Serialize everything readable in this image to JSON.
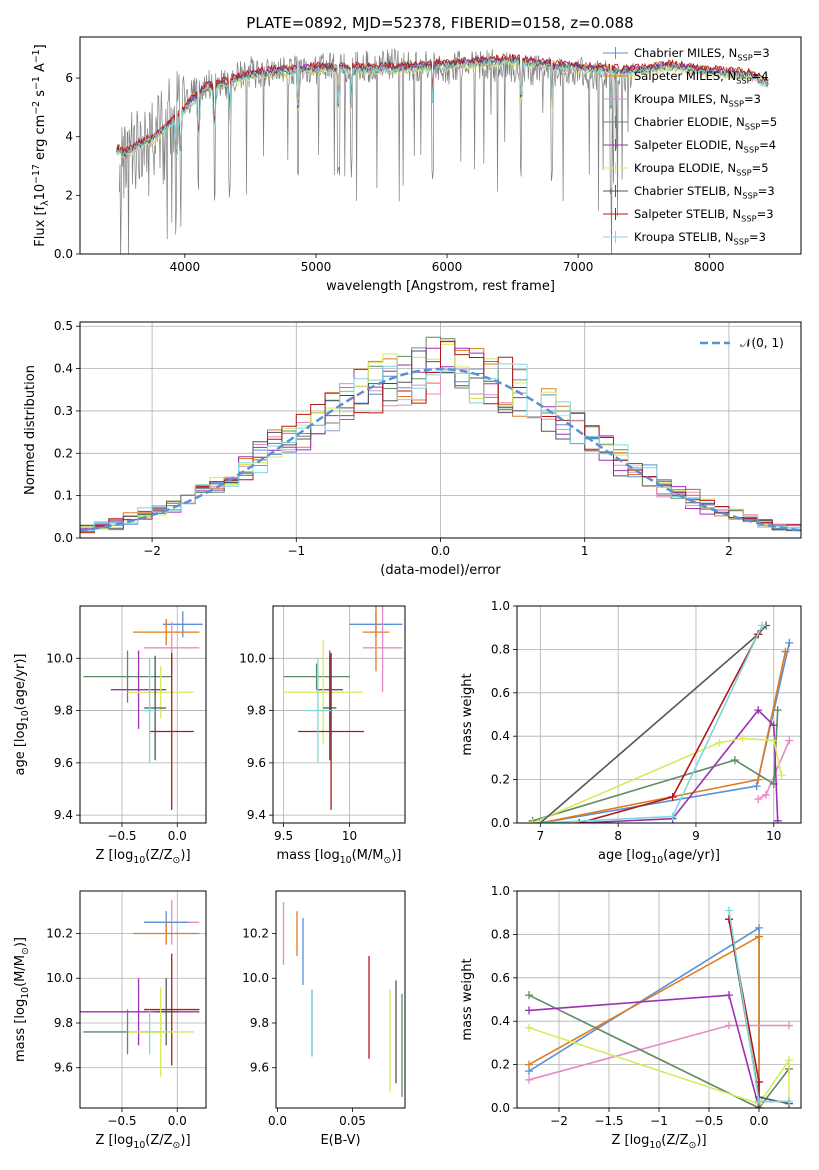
{
  "figure": {
    "title": "PLATE=0892, MJD=52378, FIBERID=0158, z=0.088"
  },
  "colors": {
    "Chabrier MILES": "#5b8fd6",
    "Salpeter MILES": "#e07b1f",
    "Kroupa MILES": "#e88bc4",
    "Chabrier ELODIE": "#5f8a63",
    "Salpeter ELODIE": "#9b30b6",
    "Kroupa ELODIE": "#d4ec5c",
    "Chabrier STELIB": "#555555",
    "Salpeter STELIB": "#b01818",
    "Kroupa STELIB": "#7fd8dc",
    "data_spectrum": "#7f7f7f",
    "gaussian": "#5b8fd6"
  },
  "chart_data": [
    {
      "id": "spectrum",
      "type": "line",
      "xlabel": "wavelength [Angstrom, rest frame]",
      "ylabel": "Flux [f$_\\lambda$10$^{-17}$ erg cm$^{-2}$ s$^{-1}$ A$^{-1}$]",
      "xlim": [
        3200,
        8700
      ],
      "ylim": [
        0,
        7.4
      ],
      "xticks": [
        4000,
        5000,
        6000,
        7000,
        8000
      ],
      "yticks": [
        0,
        2,
        4,
        6
      ],
      "legend_position": "top-right",
      "legend": [
        "Chabrier MILES, N_SSP=3",
        "Salpeter MILES, N_SSP=4",
        "Kroupa MILES, N_SSP=3",
        "Chabrier ELODIE, N_SSP=5",
        "Salpeter ELODIE, N_SSP=4",
        "Kroupa ELODIE, N_SSP=5",
        "Chabrier STELIB, N_SSP=3",
        "Salpeter STELIB, N_SSP=3",
        "Kroupa STELIB, N_SSP=3"
      ],
      "data_continuum": {
        "x": [
          3500,
          3600,
          3700,
          3800,
          3900,
          4000,
          4100,
          4200,
          4300,
          4400,
          4500,
          4600,
          4800,
          5000,
          5200,
          5400,
          5600,
          5800,
          6000,
          6200,
          6400,
          6600,
          6800,
          7000,
          7200,
          7400
        ],
        "y": [
          2.8,
          3.5,
          3.8,
          4.2,
          4.7,
          5.2,
          5.6,
          5.8,
          5.7,
          6.0,
          6.2,
          6.1,
          6.2,
          6.3,
          6.4,
          6.4,
          6.5,
          6.4,
          6.3,
          6.5,
          6.4,
          6.3,
          6.2,
          6.2,
          6.1,
          6.0
        ]
      },
      "model_continuum": {
        "x": [
          3500,
          3550,
          3650,
          3750,
          3850,
          3950,
          4050,
          4150,
          4300,
          4500,
          4700,
          5000,
          5300,
          5600,
          5900,
          6200,
          6500,
          6800,
          7100,
          7400,
          7700,
          8000,
          8300,
          8450
        ],
        "y": [
          3.5,
          3.4,
          3.7,
          3.9,
          4.3,
          4.7,
          5.2,
          5.6,
          5.8,
          6.1,
          6.2,
          6.3,
          6.3,
          6.3,
          6.4,
          6.5,
          6.6,
          6.4,
          6.3,
          6.2,
          6.4,
          6.2,
          6.1,
          5.8
        ]
      }
    },
    {
      "id": "residuals",
      "type": "line",
      "xlabel": "(data-model)/error",
      "ylabel": "Normed distribution",
      "xlim": [
        -2.5,
        2.5
      ],
      "ylim": [
        0,
        0.51
      ],
      "xticks": [
        -2,
        -1,
        0,
        1,
        2
      ],
      "yticks": [
        0.0,
        0.1,
        0.2,
        0.3,
        0.4,
        0.5
      ],
      "legend_position": "top-right",
      "legend": [
        "$\\mathcal{N}(0, 1)$"
      ],
      "grid": true
    },
    {
      "id": "age-vs-Z",
      "type": "scatter",
      "xlabel": "Z [log$_{10}$(Z/Z$_\\odot$)]",
      "ylabel": "age  [log$_{10}$(age/yr)]",
      "xlim": [
        -0.88,
        0.26
      ],
      "ylim": [
        9.37,
        10.2
      ],
      "xticks": [
        -0.5,
        0.0
      ],
      "yticks": [
        9.4,
        9.6,
        9.8,
        10.0
      ],
      "grid": true,
      "points": [
        {
          "model": "Chabrier MILES",
          "x": 0.05,
          "xerr": 0.18,
          "y": 10.13,
          "yerr": 0.05
        },
        {
          "model": "Salpeter MILES",
          "x": -0.1,
          "xerr": 0.3,
          "y": 10.1,
          "yerr": 0.05
        },
        {
          "model": "Kroupa MILES",
          "x": -0.05,
          "xerr": 0.25,
          "y": 10.04,
          "yerr": 0.1
        },
        {
          "model": "Chabrier ELODIE",
          "x": -0.45,
          "xerr": 0.4,
          "y": 9.93,
          "yerr": 0.1
        },
        {
          "model": "Salpeter ELODIE",
          "x": -0.35,
          "xerr": 0.25,
          "y": 9.88,
          "yerr": 0.15
        },
        {
          "model": "Kroupa ELODIE",
          "x": -0.15,
          "xerr": 0.3,
          "y": 9.87,
          "yerr": 0.1
        },
        {
          "model": "Chabrier STELIB",
          "x": -0.2,
          "xerr": 0.1,
          "y": 9.81,
          "yerr": 0.2
        },
        {
          "model": "Salpeter STELIB",
          "x": -0.05,
          "xerr": 0.2,
          "y": 9.72,
          "yerr": 0.3
        },
        {
          "model": "Kroupa STELIB",
          "x": -0.25,
          "xerr": 0.05,
          "y": 9.8,
          "yerr": 0.2
        }
      ]
    },
    {
      "id": "age-vs-mass",
      "type": "scatter",
      "xlabel": "mass [log$_{10}$(M/M$_\\odot$)]",
      "ylabel": "",
      "xlim": [
        9.42,
        10.42
      ],
      "ylim": [
        9.37,
        10.2
      ],
      "xticks": [
        9.5,
        10.0
      ],
      "yticks": [
        9.4,
        9.6,
        9.8,
        10.0
      ],
      "grid": true,
      "points": [
        {
          "model": "Chabrier MILES",
          "x": 10.2,
          "xerr": 0.2,
          "y": 10.13,
          "yerr": 0.05
        },
        {
          "model": "Salpeter MILES",
          "x": 10.2,
          "xerr": 0.1,
          "y": 10.1,
          "yerr": 0.15
        },
        {
          "model": "Kroupa MILES",
          "x": 10.25,
          "xerr": 0.15,
          "y": 10.04,
          "yerr": 0.17
        },
        {
          "model": "Chabrier ELODIE",
          "x": 9.75,
          "xerr": 0.25,
          "y": 9.93,
          "yerr": 0.05
        },
        {
          "model": "Salpeter ELODIE",
          "x": 9.85,
          "xerr": 0.1,
          "y": 9.88,
          "yerr": 0.15
        },
        {
          "model": "Kroupa ELODIE",
          "x": 9.8,
          "xerr": 0.3,
          "y": 9.87,
          "yerr": 0.2
        },
        {
          "model": "Chabrier STELIB",
          "x": 9.85,
          "xerr": 0.05,
          "y": 9.81,
          "yerr": 0.2
        },
        {
          "model": "Salpeter STELIB",
          "x": 9.86,
          "xerr": 0.25,
          "y": 9.72,
          "yerr": 0.3
        },
        {
          "model": "Kroupa STELIB",
          "x": 9.76,
          "xerr": 0.1,
          "y": 9.8,
          "yerr": 0.2
        }
      ]
    },
    {
      "id": "mass-weight-vs-age",
      "type": "line",
      "xlabel": "age  [log$_{10}$(age/yr)]",
      "ylabel": "mass weight",
      "xlim": [
        6.7,
        10.35
      ],
      "ylim": [
        0,
        1.0
      ],
      "xticks": [
        7,
        8,
        9,
        10
      ],
      "yticks": [
        0.0,
        0.2,
        0.4,
        0.6,
        0.8,
        1.0
      ],
      "grid": true,
      "series": [
        {
          "model": "Chabrier MILES",
          "x": [
            7.0,
            9.78,
            10.2
          ],
          "y": [
            0.0,
            0.17,
            0.83
          ]
        },
        {
          "model": "Salpeter MILES",
          "x": [
            7.0,
            9.8,
            10.15
          ],
          "y": [
            0.0,
            0.2,
            0.79
          ]
        },
        {
          "model": "Kroupa MILES",
          "x": [
            9.8,
            9.9,
            10.2
          ],
          "y": [
            0.11,
            0.13,
            0.38
          ]
        },
        {
          "model": "Chabrier ELODIE",
          "x": [
            6.9,
            9.5,
            10.0,
            10.05
          ],
          "y": [
            0.01,
            0.29,
            0.18,
            0.52
          ]
        },
        {
          "model": "Salpeter ELODIE",
          "x": [
            7.5,
            8.7,
            9.8,
            10.0,
            10.05
          ],
          "y": [
            0.0,
            0.02,
            0.52,
            0.45,
            0.01
          ]
        },
        {
          "model": "Kroupa ELODIE",
          "x": [
            6.9,
            9.3,
            9.6,
            10.0,
            10.1
          ],
          "y": [
            0.0,
            0.37,
            0.39,
            0.38,
            0.22
          ]
        },
        {
          "model": "Chabrier STELIB",
          "x": [
            7.0,
            9.8,
            9.9
          ],
          "y": [
            0.0,
            0.87,
            0.91
          ]
        },
        {
          "model": "Salpeter STELIB",
          "x": [
            7.5,
            8.7,
            9.8
          ],
          "y": [
            0.0,
            0.12,
            0.87
          ]
        },
        {
          "model": "Kroupa STELIB",
          "x": [
            7.0,
            8.7,
            9.85
          ],
          "y": [
            0.0,
            0.03,
            0.91
          ]
        }
      ]
    },
    {
      "id": "mass-vs-Z",
      "type": "scatter",
      "xlabel": "Z [log$_{10}$(Z/Z$_\\odot$)]",
      "ylabel": "mass [log$_{10}$(M/M$_\\odot$)]",
      "xlim": [
        -0.88,
        0.26
      ],
      "ylim": [
        9.42,
        10.39
      ],
      "xticks": [
        -0.5,
        0.0
      ],
      "yticks": [
        9.6,
        9.8,
        10.0,
        10.2
      ],
      "grid": true,
      "points": [
        {
          "model": "Kroupa MILES",
          "x": -0.05,
          "xerr": 0.25,
          "y": 10.25,
          "yerr": 0.1
        },
        {
          "model": "Chabrier MILES",
          "x": -0.1,
          "xerr": 0.2,
          "y": 10.25,
          "yerr": 0.05
        },
        {
          "model": "Salpeter MILES",
          "x": -0.1,
          "xerr": 0.3,
          "y": 10.2,
          "yerr": 0.05
        },
        {
          "model": "Salpeter ELODIE",
          "x": -0.35,
          "xerr": 0.55,
          "y": 9.85,
          "yerr": 0.15
        },
        {
          "model": "Salpeter STELIB",
          "x": -0.05,
          "xerr": 0.25,
          "y": 9.86,
          "yerr": 0.25
        },
        {
          "model": "Chabrier STELIB",
          "x": -0.1,
          "xerr": 0.1,
          "y": 9.85,
          "yerr": 0.15
        },
        {
          "model": "Kroupa STELIB",
          "x": -0.25,
          "xerr": 0.05,
          "y": 9.76,
          "yerr": 0.1
        },
        {
          "model": "Chabrier ELODIE",
          "x": -0.45,
          "xerr": 0.4,
          "y": 9.76,
          "yerr": 0.1
        },
        {
          "model": "Kroupa ELODIE",
          "x": -0.15,
          "xerr": 0.3,
          "y": 9.76,
          "yerr": 0.2
        }
      ]
    },
    {
      "id": "mass-vs-ebv",
      "type": "scatter",
      "xlabel": "E(B-V)",
      "ylabel": "",
      "xlim": [
        -0.001,
        0.085
      ],
      "ylim": [
        9.42,
        10.39
      ],
      "xticks": [
        0.0,
        0.05
      ],
      "yticks": [
        9.6,
        9.8,
        10.0,
        10.2
      ],
      "grid": false,
      "points": [
        {
          "model": "Kroupa MILES",
          "x": 0.004,
          "y": 10.2,
          "yerr": 0.14
        },
        {
          "model": "Salpeter MILES",
          "x": 0.013,
          "y": 10.2,
          "yerr": 0.1
        },
        {
          "model": "Chabrier MILES",
          "x": 0.017,
          "y": 10.12,
          "yerr": 0.15
        },
        {
          "model": "Chabrier ELODIE",
          "x": 0.023,
          "y": 9.8,
          "yerr": 0.15
        },
        {
          "model": "Kroupa STELIB",
          "x": 0.023,
          "y": 9.8,
          "yerr": 0.15
        },
        {
          "model": "Salpeter STELIB",
          "x": 0.061,
          "y": 9.87,
          "yerr": 0.23
        },
        {
          "model": "Kroupa ELODIE",
          "x": 0.075,
          "y": 9.72,
          "yerr": 0.23
        },
        {
          "model": "Chabrier STELIB",
          "x": 0.079,
          "y": 9.76,
          "yerr": 0.23
        },
        {
          "model": "Chabrier ELODIE",
          "x": 0.083,
          "y": 9.7,
          "yerr": 0.23
        }
      ]
    },
    {
      "id": "mass-weight-vs-Z",
      "type": "line",
      "xlabel": "Z [log$_{10}$(Z/Z$_\\odot$)]",
      "ylabel": "mass weight",
      "xlim": [
        -2.42,
        0.42
      ],
      "ylim": [
        0,
        1.0
      ],
      "xticks": [
        -2.0,
        -1.5,
        -1.0,
        -0.5,
        0.0
      ],
      "yticks": [
        0.0,
        0.2,
        0.4,
        0.6,
        0.8,
        1.0
      ],
      "grid": true,
      "series": [
        {
          "model": "Chabrier MILES",
          "x": [
            -2.3,
            0.0,
            0.0,
            0.3
          ],
          "y": [
            0.17,
            0.83,
            0.03,
            0.03
          ]
        },
        {
          "model": "Salpeter MILES",
          "x": [
            -2.3,
            0.0,
            0.0
          ],
          "y": [
            0.2,
            0.79,
            0.0
          ]
        },
        {
          "model": "Kroupa MILES",
          "x": [
            -2.3,
            -0.3,
            0.3
          ],
          "y": [
            0.13,
            0.38,
            0.38
          ]
        },
        {
          "model": "Chabrier ELODIE",
          "x": [
            -2.3,
            0.0,
            0.3
          ],
          "y": [
            0.52,
            0.0,
            0.18
          ]
        },
        {
          "model": "Salpeter ELODIE",
          "x": [
            -2.3,
            -0.3,
            0.0
          ],
          "y": [
            0.45,
            0.52,
            0.0
          ]
        },
        {
          "model": "Kroupa ELODIE",
          "x": [
            -2.3,
            0.0,
            0.3,
            0.3
          ],
          "y": [
            0.37,
            0.02,
            0.22,
            0.02
          ]
        },
        {
          "model": "Chabrier STELIB",
          "x": [
            -0.3,
            0.0,
            0.3
          ],
          "y": [
            0.87,
            0.05,
            0.02
          ]
        },
        {
          "model": "Salpeter STELIB",
          "x": [
            -0.3,
            0.0,
            0.0
          ],
          "y": [
            0.87,
            0.12,
            0.0
          ]
        },
        {
          "model": "Kroupa STELIB",
          "x": [
            -0.3,
            0.0,
            0.3
          ],
          "y": [
            0.91,
            0.03,
            0.03
          ]
        }
      ]
    }
  ]
}
